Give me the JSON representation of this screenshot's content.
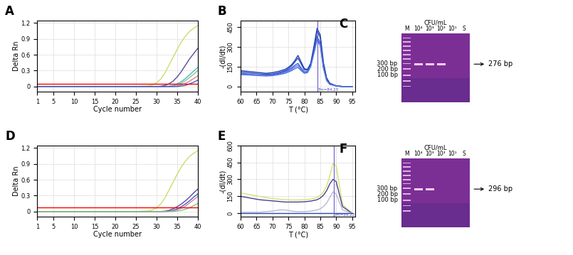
{
  "chart_data": [
    {
      "type": "line",
      "title": "A",
      "x_label": "Cycle number",
      "y_label": "Delta Rn",
      "x": [
        1,
        5,
        10,
        15,
        20,
        25,
        28,
        29,
        30,
        31,
        32,
        33,
        34,
        35,
        36,
        37,
        38,
        39,
        40
      ],
      "xlim": [
        1,
        40
      ],
      "ylim": [
        -0.1,
        1.25
      ],
      "xticks": [
        1,
        5,
        10,
        15,
        20,
        25,
        30,
        35,
        40
      ],
      "yticks": [
        0,
        0.3,
        0.6,
        0.9,
        1.2
      ],
      "grid": true,
      "series": [
        {
          "color": "#c8e06a",
          "values": [
            0,
            0,
            0,
            0,
            0,
            0,
            0.01,
            0.03,
            0.07,
            0.14,
            0.25,
            0.4,
            0.55,
            0.7,
            0.84,
            0.95,
            1.04,
            1.1,
            1.15
          ]
        },
        {
          "color": "#5a4a9e",
          "values": [
            0,
            0,
            0,
            0,
            0,
            0,
            0,
            0,
            0,
            0.005,
            0.02,
            0.05,
            0.1,
            0.18,
            0.28,
            0.4,
            0.52,
            0.62,
            0.72
          ]
        },
        {
          "color": "#4fb3c8",
          "values": [
            0,
            0,
            0,
            0,
            0,
            0,
            0,
            0,
            0,
            0,
            0,
            0.005,
            0.02,
            0.05,
            0.09,
            0.15,
            0.22,
            0.29,
            0.36
          ]
        },
        {
          "color": "#7fc97f",
          "values": [
            0,
            0,
            0,
            0,
            0,
            0,
            0,
            0,
            0,
            0,
            0,
            0,
            0.01,
            0.03,
            0.06,
            0.11,
            0.17,
            0.23,
            0.3
          ]
        },
        {
          "color": "#e07fa0",
          "values": [
            0,
            0,
            0,
            0,
            0,
            0,
            0,
            0,
            0,
            0,
            0,
            0,
            0,
            0.01,
            0.03,
            0.06,
            0.1,
            0.15,
            0.2
          ]
        },
        {
          "color": "#3a5fcd",
          "values": [
            0,
            0,
            0,
            0,
            0,
            0,
            0,
            0,
            0,
            0,
            0,
            0,
            0,
            0,
            0.01,
            0.02,
            0.05,
            0.08,
            0.12
          ]
        },
        {
          "color": "#ff0000",
          "values": [
            0.05,
            0.05,
            0.05,
            0.05,
            0.05,
            0.05,
            0.05,
            0.05,
            0.05,
            0.05,
            0.05,
            0.05,
            0.05,
            0.05,
            0.05,
            0.05,
            0.05,
            0.05,
            0.05
          ]
        }
      ]
    },
    {
      "type": "line",
      "title": "B",
      "x_label": "T (°C)",
      "y_label": "-(dI/dt)",
      "x": [
        60,
        62,
        64,
        66,
        68,
        70,
        72,
        74,
        75,
        76,
        77,
        78,
        79,
        80,
        81,
        82,
        83,
        84,
        85,
        86,
        87,
        88,
        90,
        92,
        95
      ],
      "xlim": [
        60,
        96
      ],
      "ylim": [
        -40,
        500
      ],
      "xticks": [
        60,
        65,
        70,
        75,
        80,
        85,
        90,
        95
      ],
      "yticks": [
        0,
        150,
        300,
        450
      ],
      "grid": true,
      "annotations": [
        {
          "x": 84.23,
          "text": "Tm=84.23"
        }
      ],
      "series": [
        {
          "color": "#3b5bd6",
          "values": [
            100,
            95,
            90,
            85,
            85,
            90,
            100,
            115,
            125,
            140,
            160,
            175,
            140,
            110,
            115,
            160,
            260,
            380,
            330,
            150,
            50,
            20,
            5,
            0,
            0
          ]
        },
        {
          "color": "#2f4fc4",
          "values": [
            110,
            105,
            100,
            95,
            92,
            95,
            105,
            120,
            135,
            155,
            185,
            215,
            170,
            125,
            125,
            170,
            280,
            420,
            370,
            170,
            60,
            20,
            5,
            0,
            0
          ]
        },
        {
          "color": "#4a6ae0",
          "values": [
            90,
            88,
            85,
            82,
            80,
            82,
            90,
            100,
            110,
            120,
            135,
            145,
            120,
            100,
            105,
            150,
            250,
            350,
            310,
            140,
            45,
            15,
            5,
            0,
            0
          ]
        },
        {
          "color": "#1f3fa8",
          "values": [
            120,
            115,
            110,
            105,
            100,
            105,
            115,
            130,
            145,
            165,
            195,
            235,
            185,
            135,
            130,
            175,
            300,
            440,
            390,
            180,
            65,
            25,
            5,
            0,
            0
          ]
        },
        {
          "color": "#5878e8",
          "values": [
            95,
            92,
            88,
            84,
            82,
            85,
            95,
            108,
            118,
            130,
            148,
            160,
            130,
            105,
            110,
            155,
            255,
            360,
            320,
            145,
            48,
            18,
            5,
            0,
            0
          ]
        }
      ]
    },
    {
      "type": "gel",
      "title": "C",
      "header": "CFU/mL",
      "lanes": [
        "M",
        "10⁴",
        "10³",
        "10²",
        "10¹",
        "S"
      ],
      "ladder": [
        "300 bp",
        "200 bp",
        "100 bp"
      ],
      "band_label": "276 bp",
      "band_lanes": [
        "10⁴",
        "10³",
        "10²"
      ]
    },
    {
      "type": "line",
      "title": "D",
      "x_label": "Cycle number",
      "y_label": "Delta Rn",
      "x": [
        1,
        5,
        10,
        15,
        20,
        25,
        28,
        29,
        30,
        31,
        32,
        33,
        34,
        35,
        36,
        37,
        38,
        39,
        40
      ],
      "xlim": [
        1,
        40
      ],
      "ylim": [
        -0.1,
        1.25
      ],
      "xticks": [
        1,
        5,
        10,
        15,
        20,
        25,
        30,
        35,
        40
      ],
      "yticks": [
        0,
        0.3,
        0.6,
        0.9,
        1.2
      ],
      "grid": true,
      "series": [
        {
          "color": "#c8e06a",
          "values": [
            0,
            0,
            0,
            0,
            0,
            0,
            0.01,
            0.03,
            0.07,
            0.14,
            0.25,
            0.4,
            0.55,
            0.7,
            0.84,
            0.95,
            1.04,
            1.1,
            1.15
          ]
        },
        {
          "color": "#5a4a9e",
          "values": [
            0,
            0,
            0,
            0,
            0,
            0,
            0,
            0,
            0,
            0,
            0.005,
            0.02,
            0.05,
            0.09,
            0.14,
            0.2,
            0.27,
            0.35,
            0.42
          ]
        },
        {
          "color": "#3a5fcd",
          "values": [
            0,
            0,
            0,
            0,
            0,
            0,
            0,
            0,
            0,
            0,
            0,
            0.005,
            0.02,
            0.05,
            0.09,
            0.14,
            0.2,
            0.27,
            0.33
          ]
        },
        {
          "color": "#e07fa0",
          "values": [
            0,
            0,
            0,
            0,
            0,
            0,
            0,
            0,
            0,
            0,
            0,
            0,
            0.01,
            0.03,
            0.06,
            0.1,
            0.16,
            0.22,
            0.28
          ]
        },
        {
          "color": "#7fc97f",
          "values": [
            0,
            0,
            0,
            0,
            0,
            0,
            0,
            0,
            0,
            0,
            0,
            0,
            0,
            0.01,
            0.02,
            0.04,
            0.07,
            0.11,
            0.15
          ]
        },
        {
          "color": "#ff0000",
          "values": [
            0.07,
            0.07,
            0.07,
            0.07,
            0.07,
            0.07,
            0.07,
            0.07,
            0.07,
            0.07,
            0.07,
            0.07,
            0.07,
            0.07,
            0.07,
            0.07,
            0.07,
            0.07,
            0.07
          ]
        }
      ]
    },
    {
      "type": "line",
      "title": "E",
      "x_label": "T (°C)",
      "y_label": "-(dI/dt)",
      "x": [
        60,
        62,
        64,
        66,
        68,
        70,
        72,
        74,
        76,
        78,
        80,
        82,
        84,
        85,
        86,
        87,
        88,
        89,
        90,
        91,
        92,
        95
      ],
      "xlim": [
        60,
        96
      ],
      "ylim": [
        -30,
        600
      ],
      "xticks": [
        60,
        65,
        70,
        75,
        80,
        85,
        90,
        95
      ],
      "yticks": [
        0,
        150,
        300,
        450,
        600
      ],
      "grid": true,
      "annotations": [
        {
          "x": 89.23,
          "text": "Tm=89.23"
        }
      ],
      "series": [
        {
          "color": "#d8e070",
          "values": [
            180,
            170,
            160,
            150,
            140,
            130,
            125,
            120,
            118,
            118,
            120,
            125,
            140,
            160,
            190,
            240,
            330,
            440,
            420,
            250,
            80,
            0
          ]
        },
        {
          "color": "#4a3f8f",
          "values": [
            150,
            140,
            130,
            120,
            115,
            110,
            105,
            100,
            100,
            100,
            102,
            108,
            120,
            135,
            160,
            200,
            260,
            300,
            280,
            170,
            60,
            0
          ]
        },
        {
          "color": "#b8b8d8",
          "values": [
            10,
            10,
            10,
            10,
            15,
            20,
            30,
            30,
            20,
            15,
            15,
            20,
            30,
            40,
            60,
            90,
            140,
            190,
            170,
            100,
            30,
            0
          ]
        },
        {
          "color": "#2a4ab0",
          "values": [
            0,
            0,
            0,
            0,
            0,
            0,
            0,
            0,
            0,
            0,
            0,
            0,
            0,
            0,
            0,
            0,
            0,
            0,
            0,
            0,
            0,
            0
          ]
        }
      ]
    },
    {
      "type": "gel",
      "title": "F",
      "header": "CFU/mL",
      "lanes": [
        "M",
        "10⁴",
        "10³",
        "10²",
        "10¹",
        "S"
      ],
      "ladder": [
        "300 bp",
        "200 bp",
        "100 bp"
      ],
      "band_label": "296 bp",
      "band_lanes": [
        "10⁴",
        "10³"
      ]
    }
  ]
}
